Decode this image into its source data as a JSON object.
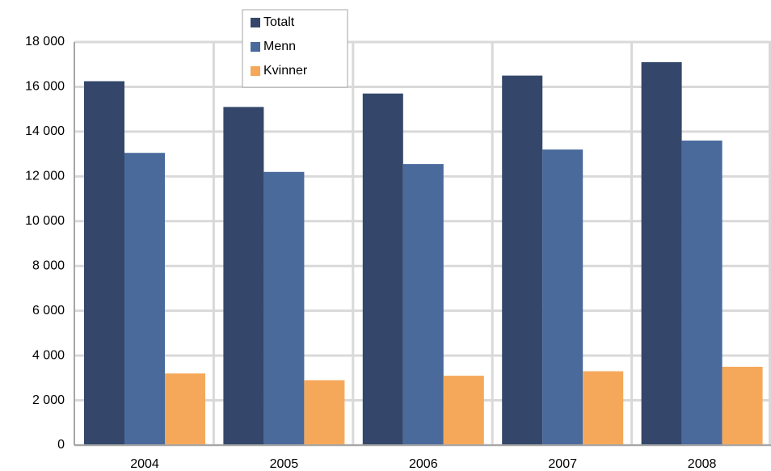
{
  "chart_data": {
    "type": "bar",
    "categories": [
      "2004",
      "2005",
      "2006",
      "2007",
      "2008"
    ],
    "series": [
      {
        "name": "Totalt",
        "color": "#34476a",
        "values": [
          16250,
          15100,
          15700,
          16500,
          17100
        ]
      },
      {
        "name": "Menn",
        "color": "#4a6a9c",
        "values": [
          13050,
          12200,
          12550,
          13200,
          13600
        ]
      },
      {
        "name": "Kvinner",
        "color": "#f5a85a",
        "values": [
          3200,
          2900,
          3100,
          3300,
          3500
        ]
      }
    ],
    "ylim": [
      0,
      18000
    ],
    "yticks": [
      0,
      {
        "value": 2000,
        "label": "2 000"
      },
      {
        "value": 4000,
        "label": "4 000"
      },
      {
        "value": 6000,
        "label": "6 000"
      },
      {
        "value": 8000,
        "label": "8 000"
      },
      {
        "value": 10000,
        "label": "10 000"
      },
      {
        "value": 12000,
        "label": "12 000"
      },
      {
        "value": 14000,
        "label": "14 000"
      },
      {
        "value": 16000,
        "label": "16 000"
      },
      {
        "value": 18000,
        "label": "18 000"
      }
    ],
    "grid": true,
    "legend": "top"
  }
}
